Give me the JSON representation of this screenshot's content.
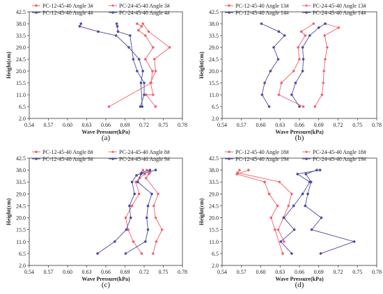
{
  "colors": {
    "pc12": "#f0606a",
    "pc24": "#f0606a",
    "blue": "#4a4aa0"
  },
  "chart_data": [
    {
      "type": "line",
      "caption": "(a)",
      "xlabel": "Wave Pressure(kPa)",
      "ylabel": "Height(cm)",
      "xlim": [
        0.54,
        0.78
      ],
      "xticks": [
        "0.54",
        "0.57",
        "0.60",
        "0.63",
        "0.66",
        "0.69",
        "0.72",
        "0.75",
        "0.78"
      ],
      "ylim": [
        2.0,
        42.5
      ],
      "yticks": [
        "2.0",
        "6.5",
        "11.0",
        "15.5",
        "20.0",
        "24.5",
        "29.0",
        "33.5",
        "38.0",
        "42.5"
      ],
      "series": [
        {
          "name": "PC-12-45-40 Angle 3#",
          "color": "#f0606a",
          "marker": "circle",
          "x": [
            0.709,
            0.716,
            0.711,
            0.722,
            0.734,
            0.722,
            0.733,
            0.731,
            0.665
          ],
          "y": [
            38.0,
            37.0,
            35.5,
            33.5,
            29.0,
            24.5,
            20.0,
            15.5,
            6.5
          ]
        },
        {
          "name": "PC-24-45-40 Angle 3#",
          "color": "#f0606a",
          "marker": "diamond",
          "x": [
            0.718,
            0.727,
            0.76,
            0.736,
            0.738,
            0.73,
            0.734,
            0.723,
            0.738
          ],
          "y": [
            38.0,
            35.0,
            29.0,
            24.5,
            20.0,
            15.5,
            11.0,
            11.0,
            6.5
          ]
        },
        {
          "name": "PC-12-45-40 Angle 4#",
          "color": "#4a4aa0",
          "marker": "circle",
          "x": [
            0.621,
            0.619,
            0.648,
            0.676,
            0.696,
            0.712,
            0.718,
            0.715,
            0.717
          ],
          "y": [
            38.0,
            37.0,
            35.0,
            33.5,
            29.0,
            24.5,
            20.0,
            15.5,
            6.5
          ]
        },
        {
          "name": "PC-24-45-40 Angle 4#",
          "color": "#4a4aa0",
          "marker": "circle",
          "x": [
            0.677,
            0.678,
            0.679,
            0.698,
            0.703,
            0.709,
            0.72,
            0.72,
            0.714
          ],
          "y": [
            38.0,
            37.0,
            35.0,
            33.5,
            24.5,
            20.0,
            15.5,
            11.0,
            6.5
          ]
        }
      ]
    },
    {
      "type": "line",
      "caption": "(b)",
      "xlabel": "Wave Pressure(kPa)",
      "ylabel": "Height(cm)",
      "xlim": [
        0.54,
        0.78
      ],
      "xticks": [
        "0.54",
        "0.57",
        "0.60",
        "0.63",
        "0.66",
        "0.69",
        "0.72",
        "0.75",
        "0.78"
      ],
      "ylim": [
        2.0,
        42.5
      ],
      "yticks": [
        "2.0",
        "6.5",
        "11.0",
        "15.5",
        "20.0",
        "24.5",
        "29.0",
        "33.5",
        "38.0",
        "42.5"
      ],
      "series": [
        {
          "name": "PC-12-45-40 Angle 13#",
          "color": "#f0606a",
          "marker": "circle",
          "x": [
            0.682,
            0.663,
            0.669,
            0.658,
            0.66,
            0.651,
            0.632,
            0.628,
            0.666
          ],
          "y": [
            38.0,
            35.0,
            33.5,
            29.0,
            24.5,
            20.0,
            15.5,
            11.0,
            6.5
          ]
        },
        {
          "name": "PC-24-45-40 Angle 13#",
          "color": "#f0606a",
          "marker": "diamond",
          "x": [
            0.7,
            0.721,
            0.699,
            0.703,
            0.7,
            0.698,
            0.697,
            0.695,
            0.684
          ],
          "y": [
            38.0,
            36.5,
            33.5,
            29.0,
            24.5,
            20.0,
            15.5,
            11.0,
            6.5
          ]
        },
        {
          "name": "PC-12-45-40 Angle 14#",
          "color": "#4a4aa0",
          "marker": "circle",
          "x": [
            0.601,
            0.628,
            0.637,
            0.62,
            0.627,
            0.615,
            0.606,
            0.602,
            0.613
          ],
          "y": [
            38.0,
            35.0,
            33.5,
            29.0,
            24.5,
            20.0,
            15.5,
            11.0,
            6.5
          ]
        },
        {
          "name": "PC-24-45-40 Angle 14#",
          "color": "#4a4aa0",
          "marker": "circle",
          "x": [
            0.7,
            0.69,
            0.676,
            0.665,
            0.666,
            0.665,
            0.654,
            0.648,
            0.66
          ],
          "y": [
            38.0,
            36.5,
            33.5,
            29.0,
            24.5,
            20.0,
            15.5,
            11.0,
            6.5
          ]
        }
      ]
    },
    {
      "type": "line",
      "caption": "(c)",
      "xlabel": "Wave Pressure(kPa)",
      "ylabel": "Height(cm)",
      "xlim": [
        0.54,
        0.78
      ],
      "xticks": [
        "0.54",
        "0.57",
        "0.60",
        "0.63",
        "0.66",
        "0.69",
        "0.72",
        "0.75",
        "0.78"
      ],
      "ylim": [
        2.0,
        42.5
      ],
      "yticks": [
        "2.0",
        "6.5",
        "11.0",
        "15.5",
        "20.0",
        "24.5",
        "29.0",
        "33.5",
        "38.0",
        "42.5"
      ],
      "series": [
        {
          "name": "PC-12-45-40 Angle 8#",
          "color": "#f0606a",
          "marker": "circle",
          "x": [
            0.718,
            0.721,
            0.713,
            0.707,
            0.712,
            0.701,
            0.691,
            0.695,
            0.703,
            0.716
          ],
          "y": [
            38.0,
            36.5,
            35.0,
            33.5,
            29.0,
            24.5,
            20.0,
            15.5,
            11.0,
            6.5
          ]
        },
        {
          "name": "PC-24-45-40 Angle 8#",
          "color": "#f0606a",
          "marker": "diamond",
          "x": [
            0.724,
            0.729,
            0.727,
            0.723,
            0.742,
            0.735,
            0.738,
            0.748,
            0.739,
            0.734
          ],
          "y": [
            38.0,
            37.0,
            36.5,
            35.0,
            29.0,
            24.5,
            20.0,
            15.5,
            11.0,
            6.5
          ]
        },
        {
          "name": "PC-12-45-40 Angle 9#",
          "color": "#4a4aa0",
          "marker": "circle",
          "x": [
            0.729,
            0.716,
            0.708,
            0.701,
            0.705,
            0.697,
            0.699,
            0.692,
            0.674,
            0.647
          ],
          "y": [
            38.0,
            37.0,
            36.0,
            33.5,
            29.0,
            24.5,
            20.0,
            15.5,
            11.0,
            6.5
          ]
        },
        {
          "name": "PC-24-45-40 Angle 9#",
          "color": "#4a4aa0",
          "marker": "circle",
          "x": [
            0.738,
            0.715,
            0.71,
            0.732,
            0.726,
            0.724,
            0.726,
            0.722,
            0.691
          ],
          "y": [
            38.0,
            36.5,
            33.5,
            29.0,
            24.5,
            20.0,
            15.5,
            11.0,
            6.5
          ]
        }
      ]
    },
    {
      "type": "line",
      "caption": "(d)",
      "xlabel": "Wave Pressure(kPa)",
      "ylabel": "Height(cm)",
      "xlim": [
        0.54,
        0.78
      ],
      "xticks": [
        "0.54",
        "0.57",
        "0.60",
        "0.63",
        "0.66",
        "0.69",
        "0.72",
        "0.75",
        "0.78"
      ],
      "ylim": [
        2.0,
        42.5
      ],
      "yticks": [
        "2.0",
        "6.5",
        "11.0",
        "15.5",
        "20.0",
        "24.5",
        "29.0",
        "33.5",
        "38.0",
        "42.5"
      ],
      "series": [
        {
          "name": "PC-12-45-40 Angle 18#",
          "color": "#f0606a",
          "marker": "circle",
          "x": [
            0.581,
            0.563,
            0.606,
            0.613,
            0.626,
            0.616,
            0.622,
            0.634
          ],
          "y": [
            38.0,
            36.5,
            33.5,
            29.0,
            24.5,
            20.0,
            15.5,
            6.5
          ]
        },
        {
          "name": "PC-24-45-40 Angle 18#",
          "color": "#f0606a",
          "marker": "diamond",
          "x": [
            0.567,
            0.564,
            0.629,
            0.648,
            0.643,
            0.635,
            0.627,
            0.636
          ],
          "y": [
            38.0,
            37.0,
            33.5,
            29.0,
            24.5,
            20.0,
            15.5,
            11.0
          ]
        },
        {
          "name": "PC-12-45-40 Angle 19#",
          "color": "#4a4aa0",
          "marker": "circle",
          "x": [
            0.687,
            0.67,
            0.678,
            0.673,
            0.669,
            0.694,
            0.679,
            0.745,
            0.693
          ],
          "y": [
            38.0,
            36.5,
            33.5,
            29.0,
            24.5,
            20.0,
            15.5,
            11.0,
            6.5
          ]
        },
        {
          "name": "PC-24-45-40 Angle 19#",
          "color": "#4a4aa0",
          "marker": "circle",
          "x": [
            0.692,
            0.657,
            0.676,
            0.665,
            0.651,
            0.636,
            0.652,
            0.631,
            0.648
          ],
          "y": [
            38.0,
            36.5,
            33.5,
            29.0,
            24.5,
            20.0,
            15.5,
            11.0,
            6.5
          ]
        }
      ]
    }
  ]
}
